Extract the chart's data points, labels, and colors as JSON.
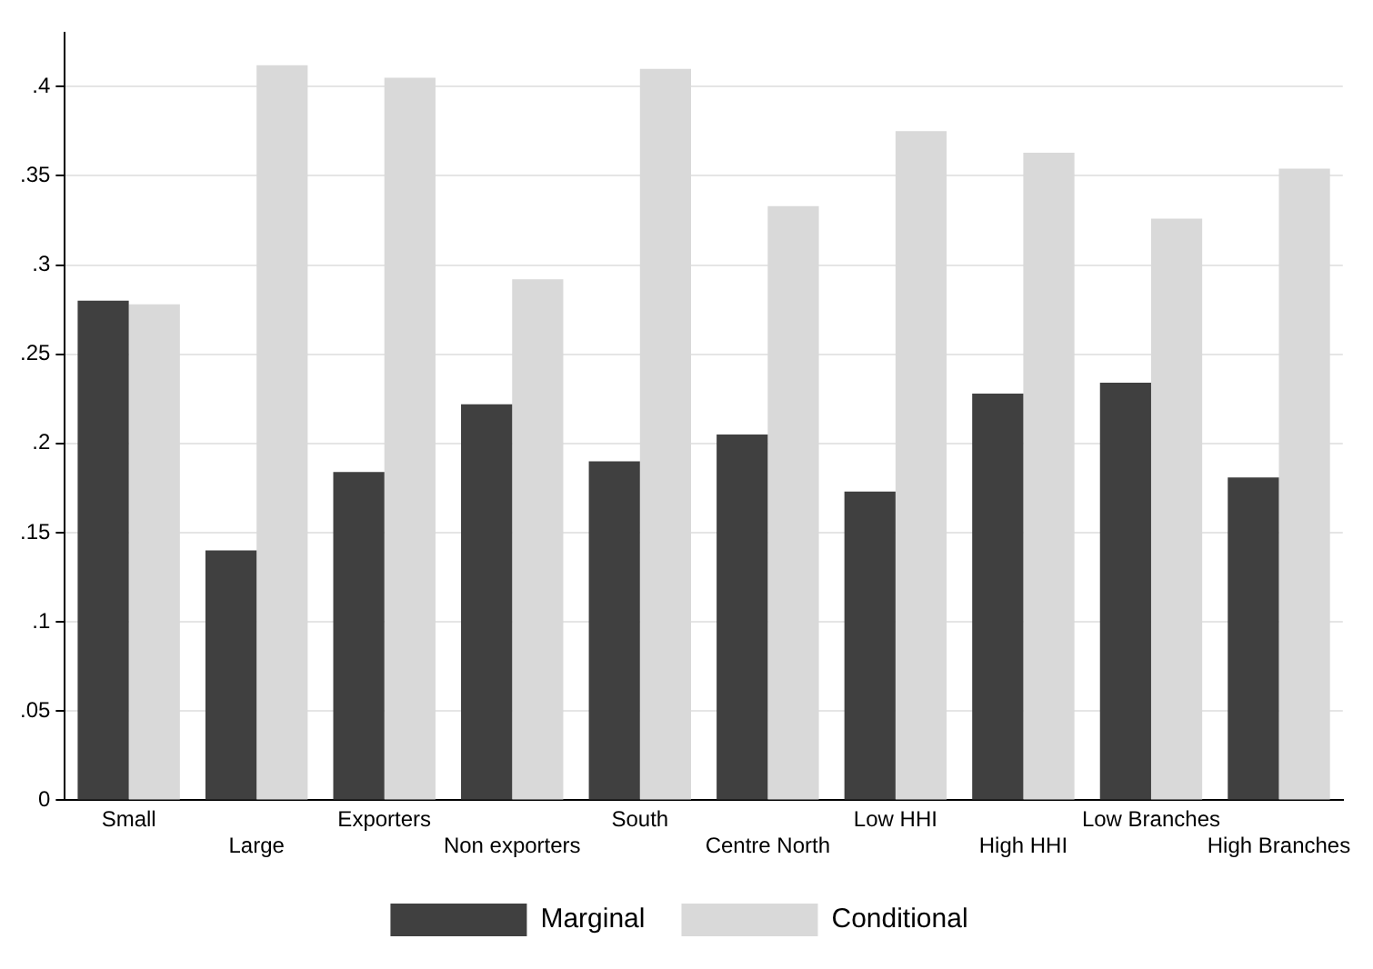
{
  "chart_data": {
    "type": "bar",
    "categories": [
      "Small",
      "Large",
      "Exporters",
      "Non exporters",
      "South",
      "Centre North",
      "Low HHI",
      "High HHI",
      "Low Branches",
      "High Branches"
    ],
    "series": [
      {
        "name": "Marginal",
        "color": "#404040",
        "values": [
          0.28,
          0.14,
          0.184,
          0.222,
          0.19,
          0.205,
          0.173,
          0.228,
          0.234,
          0.181
        ]
      },
      {
        "name": "Conditional",
        "color": "#d9d9d9",
        "values": [
          0.278,
          0.412,
          0.405,
          0.292,
          0.41,
          0.333,
          0.375,
          0.363,
          0.326,
          0.354
        ]
      }
    ],
    "ylim": [
      0,
      0.43
    ],
    "yticks": [
      0,
      {
        "value": 0.05,
        "label": ".05"
      },
      {
        "value": 0.1,
        "label": ".1"
      },
      {
        "value": 0.15,
        "label": ".15"
      },
      {
        "value": 0.2,
        "label": ".2"
      },
      {
        "value": 0.25,
        "label": ".25"
      },
      {
        "value": 0.3,
        "label": ".3"
      },
      {
        "value": 0.35,
        "label": ".35"
      },
      {
        "value": 0.4,
        "label": ".4"
      }
    ],
    "grid": "y",
    "legend": "bottom"
  }
}
